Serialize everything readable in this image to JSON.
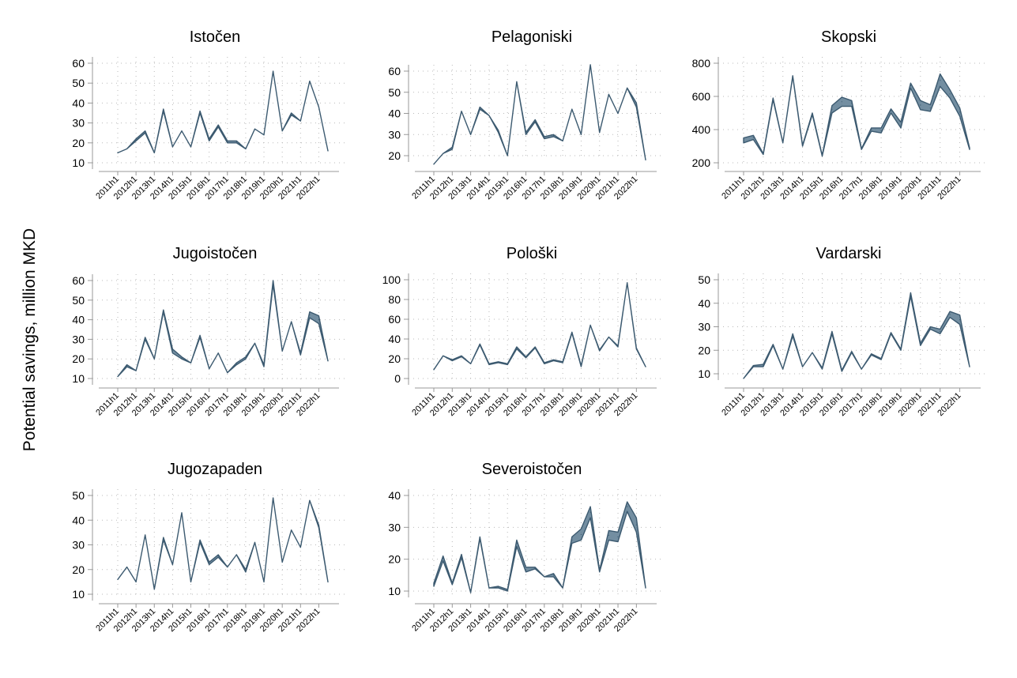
{
  "figure": {
    "ylabel": "Potential savings, million MKD"
  },
  "colors": {
    "band_fill": "#5b7a90",
    "band_line": "#3c5a70",
    "grid": "#b9b9b9",
    "axis": "#999999"
  },
  "chart_data": [
    {
      "type": "area",
      "title": "Istočen",
      "ylim": [
        10,
        60
      ],
      "yticks": [
        10,
        20,
        30,
        40,
        50,
        60
      ],
      "lower": [
        15,
        17,
        21,
        25,
        15,
        36,
        18,
        26,
        18,
        35,
        21,
        28,
        20,
        20,
        17,
        27,
        24,
        56,
        26,
        34,
        31,
        51,
        38,
        16
      ],
      "upper": [
        15,
        17,
        22,
        26,
        15,
        37,
        18,
        26,
        18,
        36,
        22,
        29,
        21,
        21,
        17,
        27,
        24,
        56,
        26,
        35,
        31,
        51,
        38,
        16
      ]
    },
    {
      "type": "area",
      "title": "Pelagoniski",
      "ylim": [
        20,
        60
      ],
      "yticks": [
        20,
        30,
        40,
        50,
        60
      ],
      "lower": [
        16,
        21,
        23,
        41,
        30,
        42,
        39,
        31,
        20,
        55,
        30,
        36,
        28,
        29,
        27,
        42,
        30,
        63,
        31,
        49,
        40,
        52,
        43,
        18
      ],
      "upper": [
        16,
        21,
        24,
        41,
        30,
        43,
        39,
        32,
        20,
        55,
        31,
        37,
        29,
        30,
        27,
        42,
        30,
        63,
        31,
        49,
        40,
        52,
        45,
        18
      ]
    },
    {
      "type": "area",
      "title": "Skopski",
      "ylim": [
        200,
        800
      ],
      "yticks": [
        200,
        400,
        600,
        800
      ],
      "lower": [
        320,
        340,
        250,
        580,
        320,
        720,
        300,
        490,
        240,
        500,
        540,
        540,
        280,
        390,
        380,
        500,
        410,
        650,
        520,
        510,
        660,
        590,
        480,
        280
      ],
      "upper": [
        350,
        365,
        255,
        590,
        320,
        725,
        305,
        500,
        245,
        545,
        595,
        575,
        285,
        410,
        410,
        525,
        445,
        680,
        575,
        550,
        735,
        640,
        530,
        290
      ]
    },
    {
      "type": "area",
      "title": "Jugoistočen",
      "ylim": [
        10,
        60
      ],
      "yticks": [
        10,
        20,
        30,
        40,
        50,
        60
      ],
      "lower": [
        11,
        16,
        14,
        30,
        20,
        44,
        23,
        20,
        18,
        31,
        15,
        23,
        13,
        17,
        20,
        28,
        16,
        58,
        24,
        39,
        22,
        41,
        38,
        19
      ],
      "upper": [
        11,
        17,
        14,
        31,
        20,
        45,
        25,
        21,
        18,
        32,
        15,
        23,
        13,
        18,
        21,
        28,
        17,
        60,
        24,
        39,
        23,
        44,
        42,
        19
      ]
    },
    {
      "type": "area",
      "title": "Pološki",
      "ylim": [
        0,
        100
      ],
      "yticks": [
        0,
        20,
        40,
        60,
        80,
        100
      ],
      "lower": [
        9,
        23,
        18,
        22,
        15,
        34,
        14,
        16,
        14,
        30,
        21,
        31,
        15,
        18,
        16,
        46,
        12,
        54,
        28,
        42,
        32,
        97,
        30,
        12
      ],
      "upper": [
        9,
        23,
        19,
        23,
        15,
        35,
        15,
        17,
        15,
        32,
        22,
        32,
        16,
        19,
        17,
        47,
        13,
        54,
        29,
        42,
        33,
        97,
        31,
        12
      ]
    },
    {
      "type": "area",
      "title": "Vardarski",
      "ylim": [
        10,
        50
      ],
      "yticks": [
        10,
        20,
        30,
        40,
        50
      ],
      "lower": [
        8,
        13,
        13,
        22,
        12,
        26,
        13,
        19,
        12,
        27,
        11,
        19,
        12,
        18,
        16,
        27,
        20,
        43,
        22,
        29,
        27,
        34,
        31,
        13
      ],
      "upper": [
        8,
        13.5,
        14,
        22.5,
        12,
        27,
        13,
        19,
        12.5,
        28,
        11.5,
        19.5,
        12,
        18.5,
        16.5,
        27.5,
        20.5,
        44.5,
        23,
        30,
        29,
        36.5,
        35,
        13
      ]
    },
    {
      "type": "area",
      "title": "Jugozapaden",
      "ylim": [
        10,
        50
      ],
      "yticks": [
        10,
        20,
        30,
        40,
        50
      ],
      "lower": [
        16,
        21,
        15,
        34,
        12,
        32,
        22,
        43,
        15,
        31,
        22,
        25,
        21,
        26,
        19,
        31,
        15,
        49,
        23,
        36,
        29,
        48,
        37,
        15
      ],
      "upper": [
        16,
        21,
        15,
        34,
        12,
        33,
        22,
        43,
        15,
        32,
        23,
        26,
        21,
        26,
        20,
        31,
        15,
        49,
        23,
        36,
        29,
        48,
        38,
        15
      ]
    },
    {
      "type": "area",
      "title": "Severoistočen",
      "ylim": [
        10,
        40
      ],
      "yticks": [
        10,
        20,
        30,
        40
      ],
      "lower": [
        11.5,
        19.5,
        12,
        20.5,
        9.5,
        26.5,
        11,
        11,
        10,
        24,
        16,
        17,
        14.5,
        14.5,
        11,
        25,
        26,
        33,
        16,
        26,
        25.5,
        35,
        28.5,
        11
      ],
      "upper": [
        12.5,
        21,
        12.5,
        21.5,
        9.5,
        27,
        11,
        11.5,
        10.5,
        26,
        17.5,
        17.5,
        14.5,
        15.5,
        11,
        27,
        29.5,
        36.5,
        16.5,
        29,
        28.5,
        38,
        33,
        11
      ]
    }
  ],
  "x_tick_labels": [
    "2011h1",
    "2012h1",
    "2013h1",
    "2014h1",
    "2015h1",
    "2016h1",
    "2017h1",
    "2018h1",
    "2019h1",
    "2020h1",
    "2021h1",
    "2022h1"
  ]
}
